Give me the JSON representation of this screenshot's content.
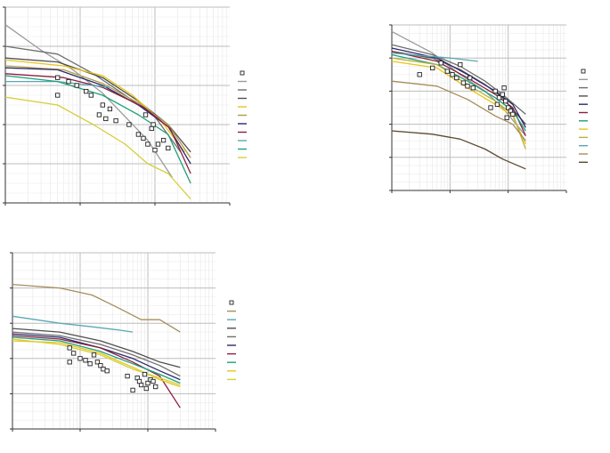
{
  "chart_data": [
    {
      "type": "line",
      "panel": "top-left",
      "title": "",
      "xlabel": "",
      "ylabel": "",
      "log_x": true,
      "xlim": [
        1,
        1000
      ],
      "ylim": [
        0,
        100
      ],
      "grid": true,
      "legend_placement": "right",
      "series": [
        {
          "color": "#9b9b9b",
          "values": [
            [
              1,
              91
            ],
            [
              3,
              78
            ],
            [
              8,
              68
            ],
            [
              20,
              56
            ],
            [
              40,
              44
            ],
            [
              80,
              32
            ],
            [
              170,
              13
            ]
          ]
        },
        {
          "color": "#6e6e6e",
          "values": [
            [
              1,
              80
            ],
            [
              5,
              76
            ],
            [
              15,
              66
            ],
            [
              40,
              55
            ],
            [
              100,
              44
            ],
            [
              220,
              26
            ]
          ]
        },
        {
          "color": "#4f4f4f",
          "values": [
            [
              1,
              74
            ],
            [
              5,
              72
            ],
            [
              20,
              64
            ],
            [
              60,
              52
            ],
            [
              150,
              40
            ],
            [
              300,
              26
            ]
          ]
        },
        {
          "color": "#e8c419",
          "values": [
            [
              1,
              73
            ],
            [
              6,
              70
            ],
            [
              20,
              65
            ],
            [
              50,
              55
            ],
            [
              120,
              42
            ],
            [
              250,
              26
            ]
          ]
        },
        {
          "color": "#b29b47",
          "values": [
            [
              1,
              70
            ],
            [
              6,
              68
            ],
            [
              20,
              61
            ],
            [
              60,
              51
            ],
            [
              150,
              40
            ],
            [
              300,
              23
            ]
          ]
        },
        {
          "color": "#2a2a6e",
          "values": [
            [
              1,
              69
            ],
            [
              5,
              68
            ],
            [
              20,
              60
            ],
            [
              60,
              50
            ],
            [
              150,
              39
            ],
            [
              300,
              20
            ]
          ]
        },
        {
          "color": "#8a2040",
          "values": [
            [
              1,
              66
            ],
            [
              6,
              64
            ],
            [
              20,
              59
            ],
            [
              70,
              49
            ],
            [
              160,
              38
            ],
            [
              300,
              15
            ]
          ]
        },
        {
          "color": "#5aa8b4",
          "values": [
            [
              1,
              62
            ],
            [
              5,
              62
            ],
            [
              15,
              60
            ],
            [
              25,
              59
            ]
          ]
        },
        {
          "color": "#1aa07a",
          "values": [
            [
              1,
              65
            ],
            [
              5,
              62
            ],
            [
              20,
              55
            ],
            [
              60,
              45
            ],
            [
              150,
              35
            ],
            [
              300,
              10
            ]
          ]
        },
        {
          "color": "#d6cf3a",
          "values": [
            [
              1,
              54
            ],
            [
              5,
              50
            ],
            [
              15,
              40
            ],
            [
              40,
              30
            ],
            [
              80,
              20
            ],
            [
              150,
              15
            ],
            [
              300,
              2
            ]
          ]
        }
      ],
      "scatter": [
        [
          5,
          64
        ],
        [
          7,
          62
        ],
        [
          5,
          55
        ],
        [
          9,
          60
        ],
        [
          12,
          57
        ],
        [
          14,
          55
        ],
        [
          20,
          50
        ],
        [
          18,
          45
        ],
        [
          25,
          48
        ],
        [
          30,
          42
        ],
        [
          22,
          43
        ],
        [
          45,
          40
        ],
        [
          60,
          35
        ],
        [
          75,
          45
        ],
        [
          90,
          38
        ],
        [
          110,
          30
        ],
        [
          130,
          32
        ],
        [
          150,
          28
        ],
        [
          70,
          33
        ],
        [
          80,
          30
        ],
        [
          95,
          40
        ],
        [
          100,
          27
        ]
      ],
      "legend_entries": 11
    },
    {
      "type": "line",
      "panel": "top-right",
      "title": "",
      "xlabel": "",
      "ylabel": "",
      "log_x": true,
      "xlim": [
        1,
        1000
      ],
      "ylim": [
        0,
        100
      ],
      "grid": true,
      "legend_placement": "right",
      "series": [
        {
          "color": "#9b9b9b",
          "values": [
            [
              1,
              96
            ],
            [
              5,
              83
            ],
            [
              15,
              70
            ],
            [
              40,
              60
            ],
            [
              80,
              50
            ],
            [
              200,
              33
            ]
          ]
        },
        {
          "color": "#6e6e6e",
          "values": [
            [
              1,
              88
            ],
            [
              5,
              82
            ],
            [
              15,
              75
            ],
            [
              40,
              66
            ],
            [
              80,
              58
            ],
            [
              200,
              46
            ]
          ]
        },
        {
          "color": "#4f4f4f",
          "values": [
            [
              1,
              84
            ],
            [
              5,
              80
            ],
            [
              15,
              73
            ],
            [
              40,
              64
            ],
            [
              80,
              56
            ],
            [
              200,
              40
            ]
          ]
        },
        {
          "color": "#2a2a6e",
          "values": [
            [
              1,
              86
            ],
            [
              6,
              80
            ],
            [
              20,
              70
            ],
            [
              60,
              60
            ],
            [
              120,
              52
            ],
            [
              200,
              38
            ]
          ]
        },
        {
          "color": "#8a2040",
          "values": [
            [
              1,
              84
            ],
            [
              6,
              78
            ],
            [
              20,
              68
            ],
            [
              60,
              58
            ],
            [
              120,
              50
            ],
            [
              200,
              33
            ]
          ]
        },
        {
          "color": "#1aa07a",
          "values": [
            [
              1,
              82
            ],
            [
              6,
              76
            ],
            [
              20,
              66
            ],
            [
              60,
              56
            ],
            [
              120,
              48
            ],
            [
              200,
              36
            ]
          ]
        },
        {
          "color": "#e8c419",
          "values": [
            [
              1,
              78
            ],
            [
              6,
              74
            ],
            [
              20,
              62
            ],
            [
              60,
              52
            ],
            [
              120,
              45
            ],
            [
              200,
              28
            ]
          ]
        },
        {
          "color": "#b8b23a",
          "values": [
            [
              1,
              80
            ],
            [
              6,
              76
            ],
            [
              20,
              64
            ],
            [
              60,
              54
            ],
            [
              120,
              46
            ],
            [
              200,
              25
            ]
          ]
        },
        {
          "color": "#5aa8b4",
          "values": [
            [
              1,
              83
            ],
            [
              10,
              80
            ],
            [
              30,
              78
            ]
          ]
        },
        {
          "color": "#a68d5c",
          "values": [
            [
              1,
              66
            ],
            [
              6,
              63
            ],
            [
              20,
              55
            ],
            [
              60,
              45
            ],
            [
              120,
              40
            ],
            [
              200,
              30
            ]
          ]
        },
        {
          "color": "#5a4a30",
          "values": [
            [
              1,
              36
            ],
            [
              5,
              34
            ],
            [
              15,
              31
            ],
            [
              40,
              25
            ],
            [
              80,
              19
            ],
            [
              200,
              13
            ]
          ]
        }
      ],
      "scatter": [
        [
          3,
          70
        ],
        [
          5,
          74
        ],
        [
          7,
          77
        ],
        [
          9,
          72
        ],
        [
          11,
          70
        ],
        [
          13,
          68
        ],
        [
          15,
          76
        ],
        [
          17,
          65
        ],
        [
          20,
          63
        ],
        [
          22,
          68
        ],
        [
          25,
          62
        ],
        [
          60,
          60
        ],
        [
          70,
          56
        ],
        [
          80,
          58
        ],
        [
          90,
          54
        ],
        [
          100,
          50
        ],
        [
          110,
          48
        ],
        [
          120,
          46
        ],
        [
          50,
          50
        ],
        [
          65,
          52
        ],
        [
          85,
          62
        ],
        [
          95,
          44
        ]
      ],
      "legend_entries": 11
    },
    {
      "type": "line",
      "panel": "bottom-left",
      "title": "",
      "xlabel": "",
      "ylabel": "",
      "log_x": true,
      "xlim": [
        1,
        1000
      ],
      "ylim": [
        0,
        100
      ],
      "grid": true,
      "legend_placement": "right",
      "series": [
        {
          "color": "#a68d5c",
          "values": [
            [
              1,
              82
            ],
            [
              5,
              80
            ],
            [
              15,
              76
            ],
            [
              40,
              68
            ],
            [
              80,
              62
            ],
            [
              150,
              62
            ],
            [
              300,
              55
            ]
          ]
        },
        {
          "color": "#5aa8b4",
          "values": [
            [
              1,
              64
            ],
            [
              5,
              60
            ],
            [
              15,
              58
            ],
            [
              40,
              56
            ],
            [
              60,
              55
            ]
          ]
        },
        {
          "color": "#4f4f4f",
          "values": [
            [
              1,
              57
            ],
            [
              5,
              55
            ],
            [
              20,
              50
            ],
            [
              60,
              44
            ],
            [
              150,
              38
            ],
            [
              300,
              35
            ]
          ]
        },
        {
          "color": "#6e6e6e",
          "values": [
            [
              1,
              55
            ],
            [
              5,
              53
            ],
            [
              20,
              48
            ],
            [
              60,
              42
            ],
            [
              150,
              36
            ],
            [
              300,
              30
            ]
          ]
        },
        {
          "color": "#2a2a6e",
          "values": [
            [
              1,
              54
            ],
            [
              5,
              52
            ],
            [
              20,
              46
            ],
            [
              60,
              40
            ],
            [
              150,
              33
            ],
            [
              300,
              28
            ]
          ]
        },
        {
          "color": "#8a2040",
          "values": [
            [
              1,
              53
            ],
            [
              5,
              51
            ],
            [
              20,
              46
            ],
            [
              60,
              38
            ],
            [
              150,
              30
            ],
            [
              300,
              12
            ]
          ]
        },
        {
          "color": "#1aa07a",
          "values": [
            [
              1,
              52
            ],
            [
              5,
              50
            ],
            [
              20,
              44
            ],
            [
              60,
              37
            ],
            [
              150,
              31
            ],
            [
              300,
              26
            ]
          ]
        },
        {
          "color": "#e8c419",
          "values": [
            [
              1,
              50
            ],
            [
              5,
              49
            ],
            [
              20,
              43
            ],
            [
              60,
              35
            ],
            [
              150,
              28
            ],
            [
              300,
              24
            ]
          ]
        },
        {
          "color": "#d6cf3a",
          "values": [
            [
              1,
              51
            ],
            [
              5,
              48
            ],
            [
              20,
              42
            ],
            [
              60,
              34
            ],
            [
              150,
              29
            ],
            [
              300,
              25
            ]
          ]
        }
      ],
      "scatter": [
        [
          7,
          46
        ],
        [
          8,
          43
        ],
        [
          7,
          38
        ],
        [
          10,
          40
        ],
        [
          12,
          39
        ],
        [
          14,
          37
        ],
        [
          16,
          42
        ],
        [
          18,
          38
        ],
        [
          20,
          36
        ],
        [
          22,
          34
        ],
        [
          25,
          33
        ],
        [
          50,
          30
        ],
        [
          70,
          29
        ],
        [
          80,
          25
        ],
        [
          90,
          31
        ],
        [
          100,
          26
        ],
        [
          110,
          28
        ],
        [
          120,
          27
        ],
        [
          130,
          24
        ],
        [
          60,
          22
        ],
        [
          75,
          27
        ],
        [
          95,
          23
        ]
      ],
      "legend_entries": 11
    }
  ]
}
